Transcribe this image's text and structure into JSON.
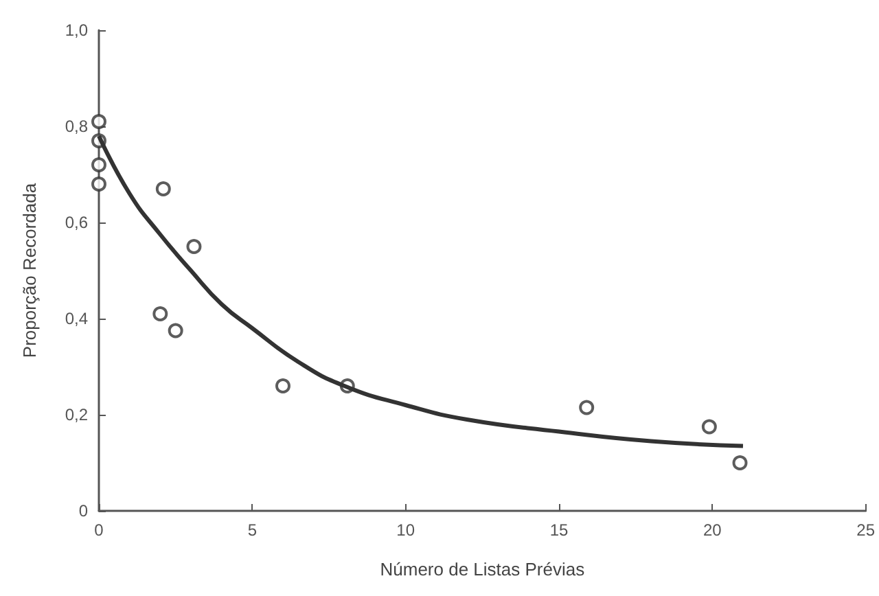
{
  "chart_data": {
    "type": "scatter",
    "xlabel": "Número de Listas Prévias",
    "ylabel": "Proporção Recordada",
    "xlim": [
      0,
      25
    ],
    "xticks": [
      0,
      5,
      10,
      15,
      20,
      25
    ],
    "ylim": [
      0,
      1
    ],
    "yticks": [
      {
        "value": 0,
        "label": "0"
      },
      {
        "value": 0.2,
        "label": "0,2"
      },
      {
        "value": 0.4,
        "label": "0,4"
      },
      {
        "value": 0.6,
        "label": "0,6"
      },
      {
        "value": 0.8,
        "label": "0,8"
      },
      {
        "value": 1,
        "label": "1,0"
      }
    ],
    "grid": false,
    "marker": "circle",
    "series": [
      {
        "color": "#333333",
        "x": [
          0,
          0,
          0,
          0,
          2.1,
          3.1,
          2.0,
          2.5,
          6.0,
          8.1,
          15.9,
          19.9,
          20.9
        ],
        "values": [
          0.81,
          0.77,
          0.72,
          0.68,
          0.67,
          0.55,
          0.41,
          0.375,
          0.26,
          0.26,
          0.215,
          0.175,
          0.1
        ]
      },
      {
        "type": "line",
        "color": "#333333",
        "marker": "none",
        "x": [
          0,
          1,
          2,
          3,
          4,
          5,
          6.5,
          8,
          10,
          12,
          15,
          18,
          21
        ],
        "values": [
          0.78,
          0.66,
          0.575,
          0.5,
          0.43,
          0.38,
          0.31,
          0.26,
          0.22,
          0.19,
          0.165,
          0.145,
          0.135
        ]
      }
    ]
  }
}
